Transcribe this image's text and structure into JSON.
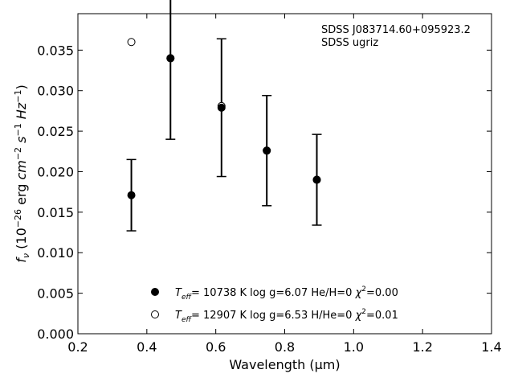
{
  "chart_data": {
    "type": "scatter",
    "title": "",
    "xlabel": "Wavelength (μm)",
    "ylabel": "f_ν (10^-26 erg cm^-2 s^-1 Hz^-1)",
    "xlim": [
      0.2,
      1.4
    ],
    "ylim": [
      0.0,
      0.0395
    ],
    "x_ticks": [
      "0.2",
      "0.4",
      "0.6",
      "0.8",
      "1.0",
      "1.2",
      "1.4"
    ],
    "y_ticks": [
      "0.000",
      "0.005",
      "0.010",
      "0.015",
      "0.020",
      "0.025",
      "0.030",
      "0.035"
    ],
    "grid": false,
    "legend_position": "bottom-center",
    "annotations": [
      "SDSS J083714.60+095923.2",
      "SDSS ugriz"
    ],
    "observed": {
      "x": [
        0.3551,
        0.4686,
        0.6166,
        0.748,
        0.8932
      ],
      "y": [
        0.0171,
        0.034,
        0.0279,
        0.0226,
        0.019
      ],
      "yerr": [
        0.0044,
        0.01,
        0.0085,
        0.0068,
        0.0056
      ]
    },
    "series": [
      {
        "name": "T_eff= 10738 K  log g=6.07  He/H=0  χ²=0.00",
        "marker": "filled",
        "x": [
          0.3551,
          0.4686,
          0.6166,
          0.748,
          0.8932
        ],
        "y": [
          0.0171,
          0.034,
          0.0279,
          0.0226,
          0.019
        ]
      },
      {
        "name": "T_eff= 12907 K  log g=6.53  H/He=0  χ²=0.01",
        "marker": "open",
        "x": [
          0.3551,
          0.4686,
          0.6166,
          0.748,
          0.8932
        ],
        "y": [
          0.036,
          0.034,
          0.0281,
          0.0226,
          0.019
        ]
      }
    ]
  }
}
